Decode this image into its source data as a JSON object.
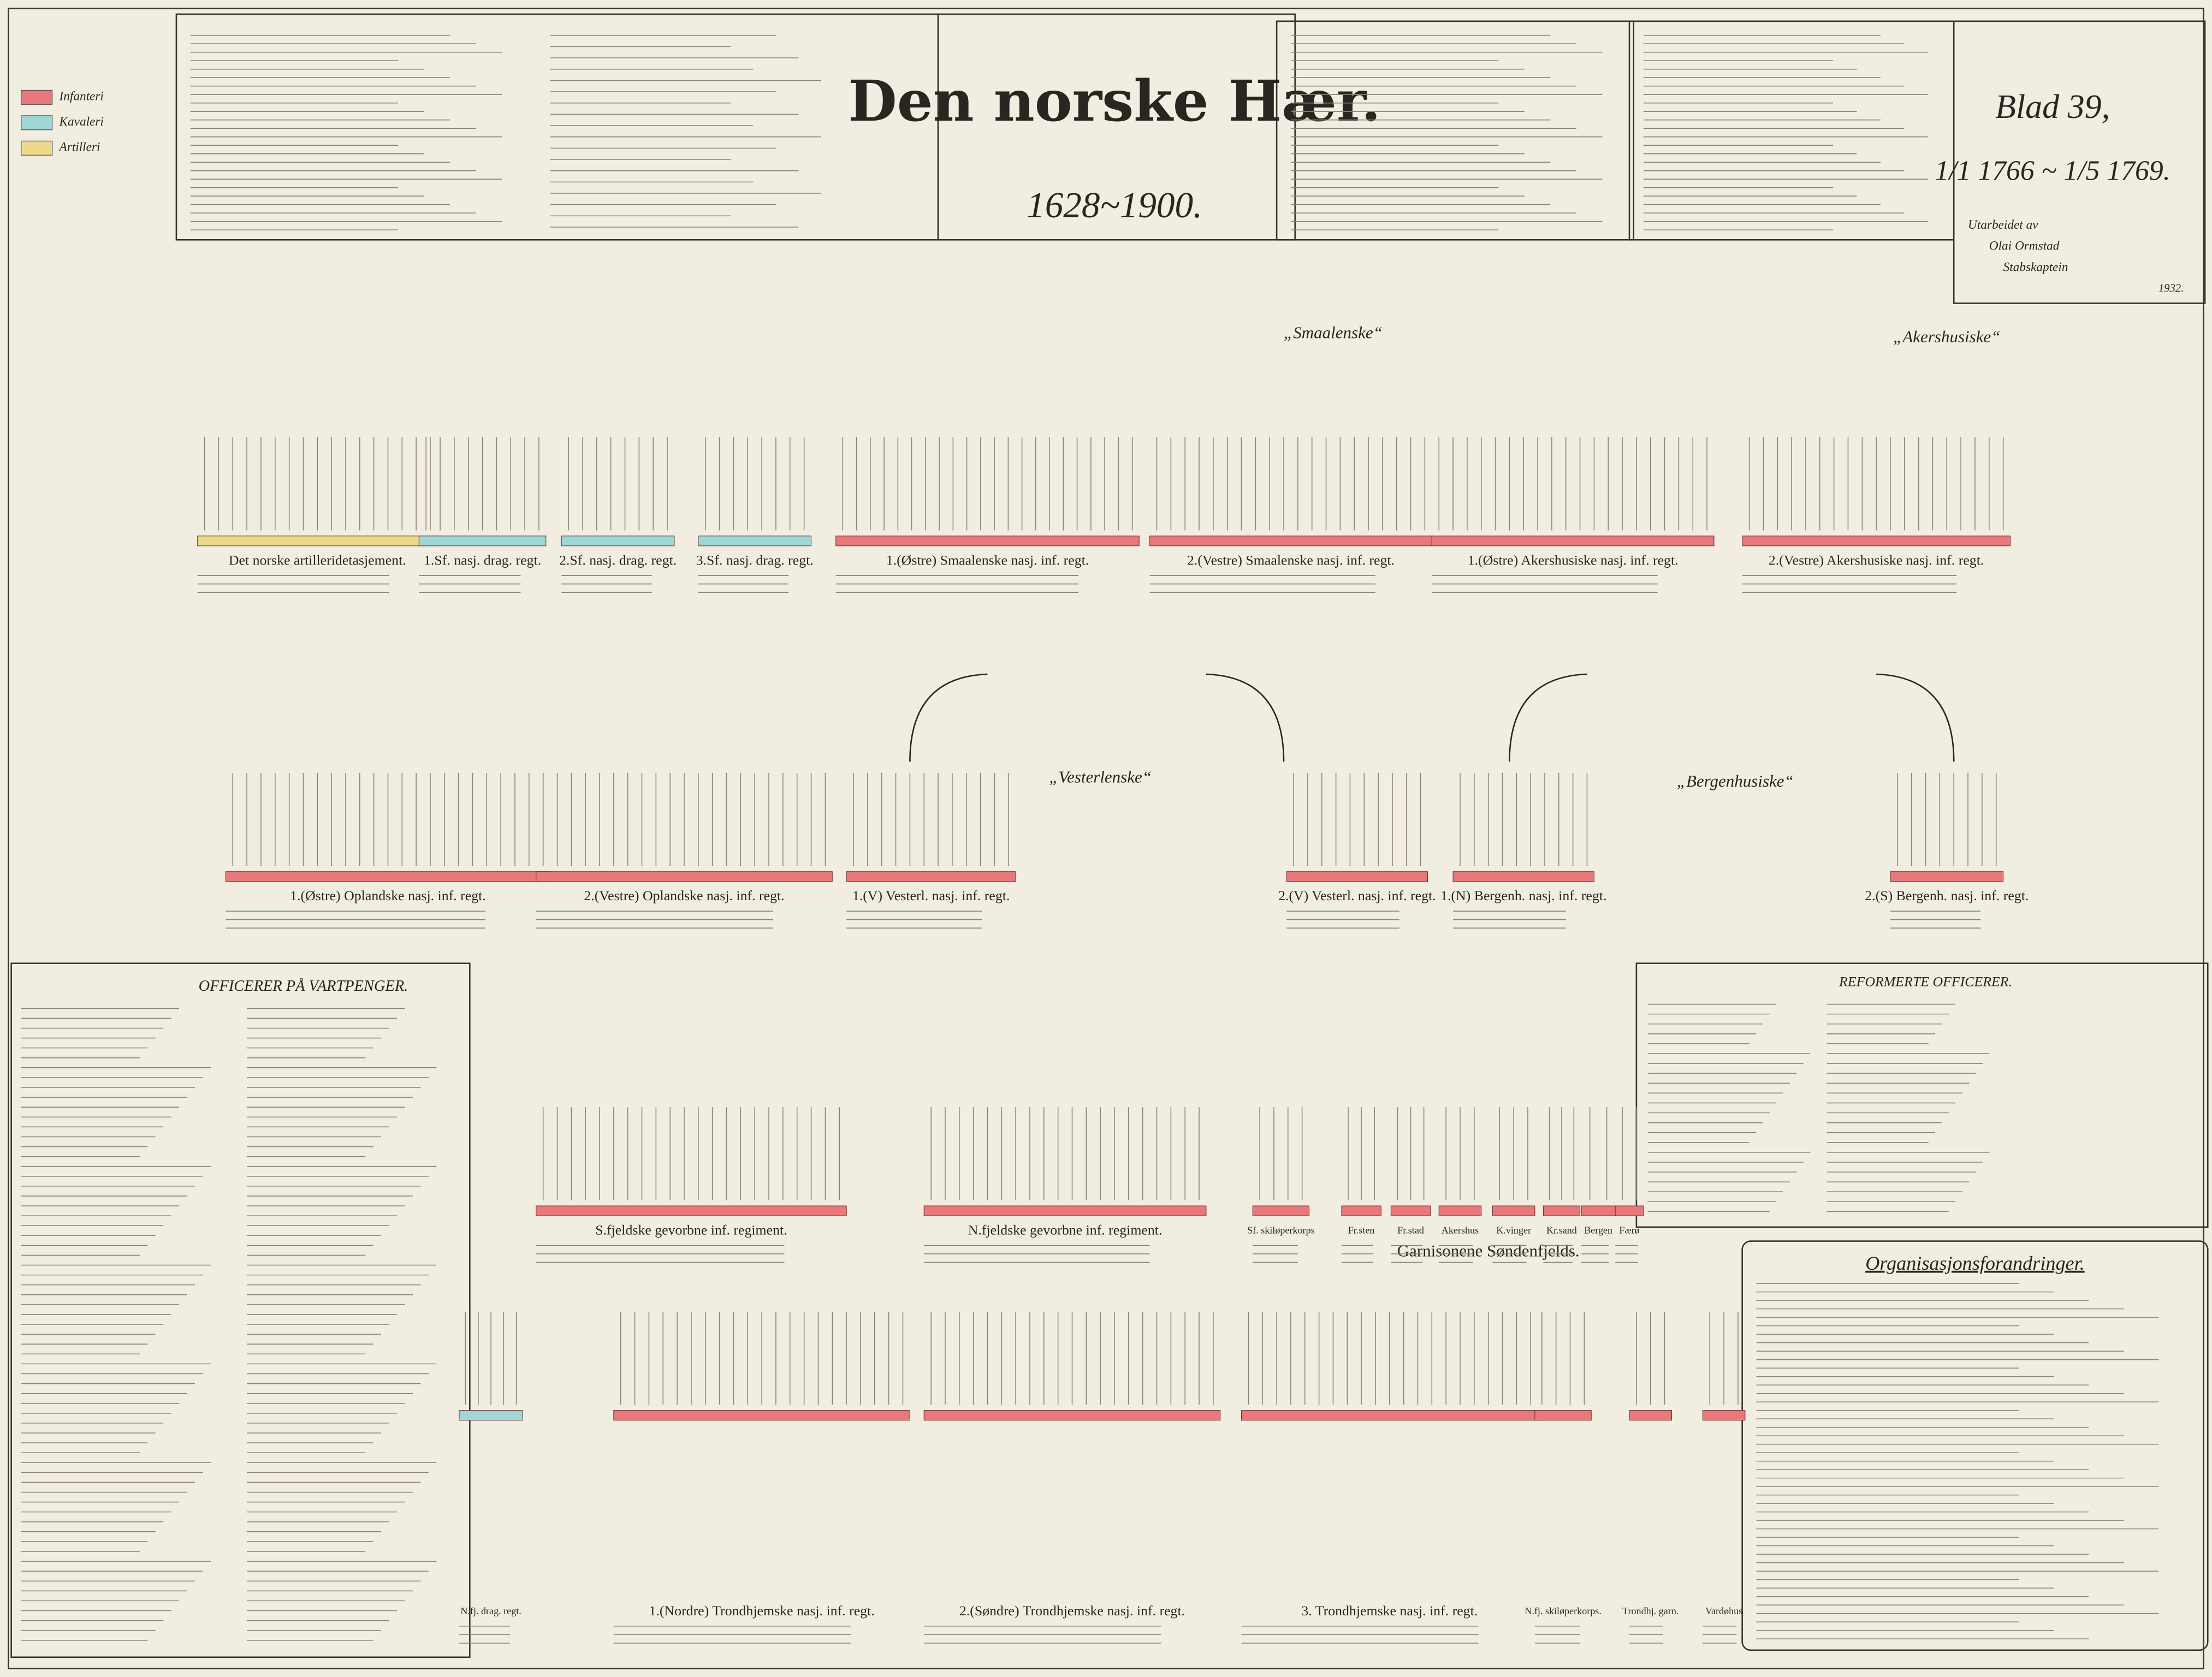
{
  "header": {
    "title": "Den norske Hær.",
    "years": "1628~1900.",
    "sheet": "Blad 39,",
    "period": "1/1 1766 ~ 1/5 1769.",
    "author_lines": [
      "Utarbeidet av",
      "Olai Ormstad",
      "Stabskaptein",
      "1932."
    ]
  },
  "legend": [
    "Infanteri",
    "Kavaleri",
    "Artilleri"
  ],
  "regiment_names": [
    "„Smaalenske“",
    "„Akershusiske“",
    "„Vesterlenske“",
    "„Bergenhusiske“"
  ],
  "units": [
    "Det norske artilleridetasjement.",
    "1.Sf. nasj. drag. regt.",
    "2.Sf. nasj. drag. regt.",
    "3.Sf. nasj. drag. regt.",
    "1.(Østre) Smaalenske nasj. inf. regt.",
    "2.(Vestre) Smaalenske nasj. inf. regt.",
    "1.(Østre) Akershusiske nasj. inf. regt.",
    "2.(Vestre) Akershusiske nasj. inf. regt.",
    "1.(Østre) Oplandske nasj. inf. regt.",
    "2.(Vestre) Oplandske nasj. inf. regt.",
    "1.(V) Vesterl. nasj. inf. regt.",
    "2.(V) Vesterl. nasj. inf. regt.",
    "1.(N) Bergenh. nasj. inf. regt.",
    "2.(S) Bergenh. nasj. inf. regt.",
    "S.fjeldske gevorbne inf. regiment.",
    "N.fjeldske gevorbne inf. regiment.",
    "Sf. skiløperkorps",
    "Fr.sten",
    "Fr.stad",
    "Akershus",
    "K.vinger",
    "Kr.sand",
    "Bergen",
    "Færø",
    "N.fj. drag. regt.",
    "1.(Nordre) Trondhjemske nasj. inf. regt.",
    "2.(Søndre) Trondhjemske nasj. inf. regt.",
    "3. Trondhjemske nasj. inf. regt.",
    "N.fj. skiløperkorps.",
    "Trondhj. garn.",
    "Vardøhus"
  ],
  "garrisons_title": "Garnisonene Søndenfjelds.",
  "panels": {
    "vartpenger": "OFFICERER PÅ VARTPENGER.",
    "reformerte": "REFORMERTE OFFICERER.",
    "organisasjon": "Organisasjonsforandringer."
  }
}
